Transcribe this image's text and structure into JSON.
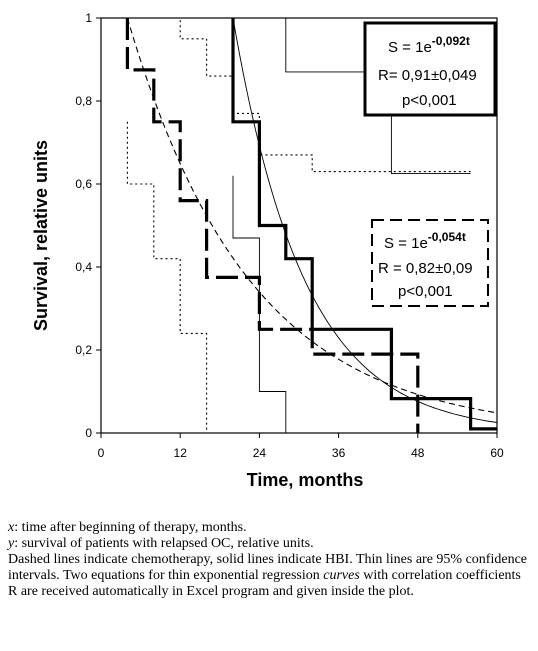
{
  "chart_data": {
    "type": "line",
    "xlabel": "Time, months",
    "ylabel": "Survival, relative units",
    "xlim": [
      0,
      60
    ],
    "ylim": [
      0,
      1
    ],
    "x_ticks": [
      0,
      12,
      24,
      36,
      48,
      60
    ],
    "x_tick_labels": [
      "0",
      "12",
      "24",
      "36",
      "48",
      "60"
    ],
    "y_ticks": [
      0,
      0.2,
      0.4,
      0.6,
      0.8,
      1
    ],
    "y_tick_labels": [
      "0",
      "0,2",
      "0,4",
      "0,6",
      "0,8",
      "1"
    ],
    "grid": false,
    "series": [
      {
        "style": "hbi-survival",
        "points": [
          [
            20,
            1
          ],
          [
            20,
            0.75
          ],
          [
            24,
            0.75
          ],
          [
            24,
            0.5
          ],
          [
            28,
            0.5
          ],
          [
            28,
            0.42
          ],
          [
            32,
            0.42
          ],
          [
            32,
            0.25
          ],
          [
            44,
            0.25
          ],
          [
            44,
            0.083
          ],
          [
            56,
            0.083
          ],
          [
            56,
            0.01
          ],
          [
            60,
            0.01
          ]
        ]
      },
      {
        "style": "hbi-ci-upper",
        "points": [
          [
            20,
            1
          ],
          [
            28,
            1
          ],
          [
            28,
            0.87
          ],
          [
            32,
            0.87
          ],
          [
            32,
            0.87
          ],
          [
            40,
            0.87
          ],
          [
            40,
            0.87
          ],
          [
            44,
            0.87
          ],
          [
            44,
            0.625
          ],
          [
            56,
            0.625
          ]
        ]
      },
      {
        "style": "hbi-ci-lower",
        "points": [
          [
            20,
            0.62
          ],
          [
            20,
            0.47
          ],
          [
            24,
            0.47
          ],
          [
            24,
            0.1
          ],
          [
            28,
            0.1
          ],
          [
            28,
            0
          ]
        ]
      },
      {
        "style": "chemo-survival",
        "points": [
          [
            4,
            1
          ],
          [
            4,
            0.875
          ],
          [
            8,
            0.875
          ],
          [
            8,
            0.75
          ],
          [
            12,
            0.75
          ],
          [
            12,
            0.56
          ],
          [
            16,
            0.56
          ],
          [
            16,
            0.375
          ],
          [
            20,
            0.375
          ],
          [
            24,
            0.375
          ],
          [
            24,
            0.25
          ],
          [
            32,
            0.25
          ],
          [
            32,
            0.19
          ],
          [
            36,
            0.19
          ],
          [
            48,
            0.19
          ],
          [
            48,
            0
          ]
        ]
      },
      {
        "style": "chemo-ci-upper",
        "points": [
          [
            4,
            1
          ],
          [
            12,
            1
          ],
          [
            12,
            0.95
          ],
          [
            16,
            0.95
          ],
          [
            16,
            0.86
          ],
          [
            20,
            0.86
          ],
          [
            20,
            0.77
          ],
          [
            24,
            0.77
          ],
          [
            24,
            0.67
          ],
          [
            28,
            0.67
          ],
          [
            28,
            0.67
          ],
          [
            32,
            0.67
          ],
          [
            32,
            0.63
          ],
          [
            44,
            0.63
          ],
          [
            56,
            0.63
          ]
        ]
      },
      {
        "style": "chemo-ci-lower",
        "points": [
          [
            4,
            0.75
          ],
          [
            4,
            0.6
          ],
          [
            8,
            0.6
          ],
          [
            8,
            0.42
          ],
          [
            12,
            0.42
          ],
          [
            12,
            0.24
          ],
          [
            16,
            0.24
          ],
          [
            16,
            0.1
          ],
          [
            16,
            0
          ]
        ]
      },
      {
        "style": "hbi-fit",
        "equation": "S = 1e-0,092t",
        "function": "exp(-0.092*(t-20))",
        "t_range": [
          20,
          60
        ]
      },
      {
        "style": "chemo-fit",
        "equation": "S = 1e-0,054t",
        "function": "exp(-0.054*(t-4))",
        "t_range": [
          4,
          60
        ]
      }
    ],
    "annotations": {
      "hbi": {
        "prefix": "S = 1e",
        "exponent": "-0,092t",
        "r": "R= 0,91±0,049",
        "p": "p<0,001"
      },
      "chemo": {
        "prefix": "S = 1e",
        "exponent": "-0,054t",
        "r": "R = 0,82±0,09",
        "p": "p<0,001"
      }
    }
  },
  "caption": {
    "line1_var": "x",
    "line1_text": ": time after beginning of therapy, months.",
    "line2_var": "y",
    "line2_text": ": survival of patients with relapsed OC, relative units.",
    "line3_text": "Dashed lines indicate chemotherapy, solid lines indicate HBI. Thin lines are 95% confidence intervals. Two equations for thin exponential regression",
    "line4_var": "curves",
    "line4_text": " with correlation coefficients R are received automatically in Excel program and given inside the plot."
  }
}
